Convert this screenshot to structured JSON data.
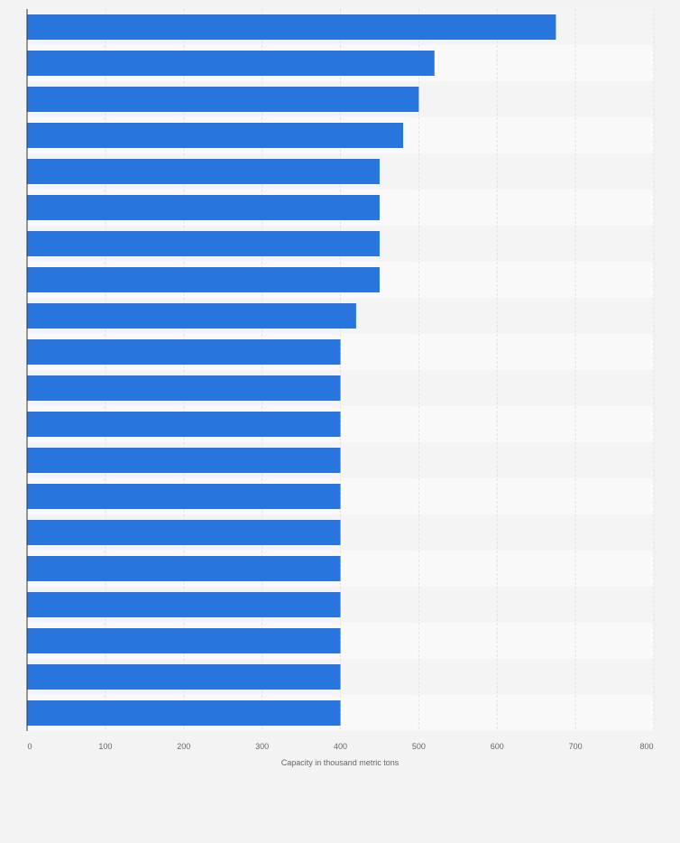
{
  "chart_data": {
    "type": "bar",
    "orientation": "horizontal",
    "xlabel": "Capacity in thousand metric tons",
    "ylabel": "",
    "xlim": [
      0,
      800
    ],
    "x_ticks": [
      0,
      100,
      200,
      300,
      400,
      500,
      600,
      700,
      800
    ],
    "grid": true,
    "legend": "none",
    "bar_color": "#2876dd",
    "categories": [
      "",
      "",
      "",
      "",
      "",
      "",
      "",
      "",
      "",
      "",
      "",
      "",
      "",
      "",
      "",
      "",
      "",
      "",
      "",
      ""
    ],
    "values": [
      675,
      520,
      500,
      480,
      450,
      450,
      450,
      450,
      420,
      400,
      400,
      400,
      400,
      400,
      400,
      400,
      400,
      400,
      400,
      400
    ]
  }
}
